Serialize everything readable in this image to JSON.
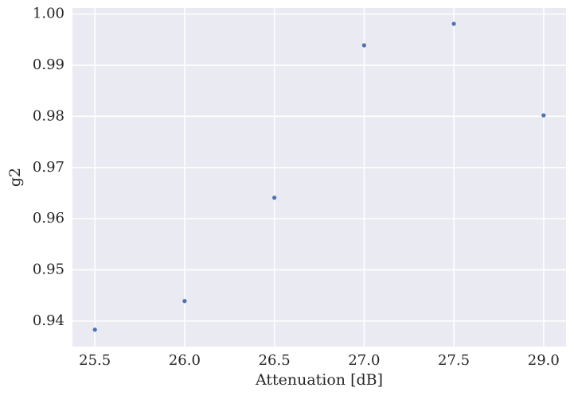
{
  "chart_data": {
    "type": "scatter",
    "x_label": "Attenuation [dB]",
    "y_label": "g2",
    "categories": [
      "25.5",
      "26.0",
      "26.5",
      "27.0",
      "27.5",
      "29.0"
    ],
    "values": [
      0.9383,
      0.9439,
      0.9641,
      0.9939,
      0.9981,
      0.9802
    ],
    "color": "#4c72b0",
    "ylim": [
      0.935,
      1.0012
    ],
    "yticks": [
      {
        "value": 0.94,
        "label": "0.94"
      },
      {
        "value": 0.95,
        "label": "0.95"
      },
      {
        "value": 0.96,
        "label": "0.96"
      },
      {
        "value": 0.97,
        "label": "0.97"
      },
      {
        "value": 0.98,
        "label": "0.98"
      },
      {
        "value": 0.99,
        "label": "0.99"
      },
      {
        "value": 1.0,
        "label": "1.00"
      }
    ],
    "grid": true
  }
}
